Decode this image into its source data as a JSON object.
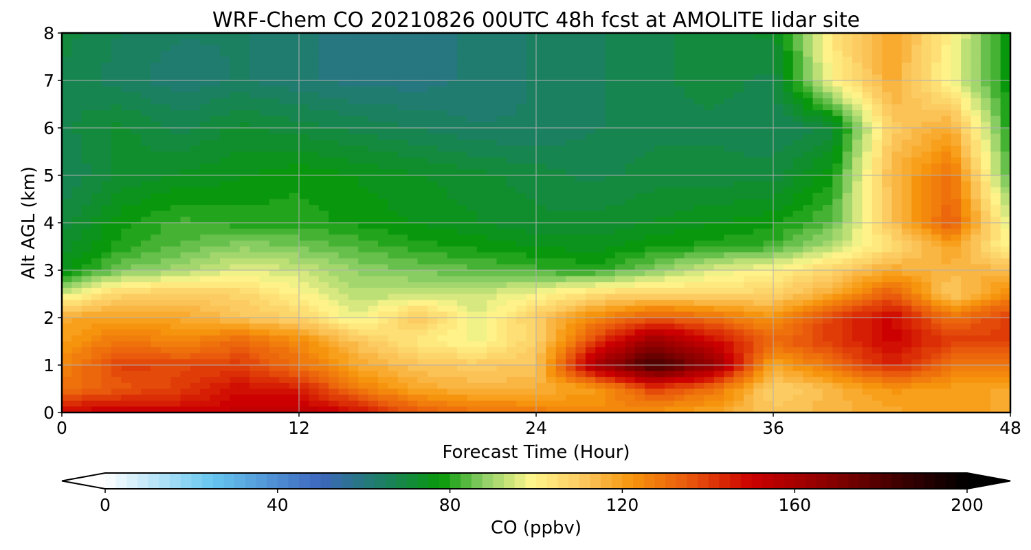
{
  "chart_data": {
    "type": "heatmap",
    "title": "WRF-Chem CO  20210826 00UTC 48h fcst at AMOLITE lidar site",
    "xlabel": "Forecast Time (Hour)",
    "ylabel": "Alt AGL (km)",
    "xlim": [
      0,
      48
    ],
    "ylim": [
      0,
      8
    ],
    "xticks": [
      0,
      12,
      24,
      36,
      48
    ],
    "yticks": [
      0,
      1,
      2,
      3,
      4,
      5,
      6,
      7,
      8
    ],
    "grid": true,
    "x": [
      0,
      3,
      6,
      9,
      12,
      15,
      18,
      21,
      24,
      27,
      30,
      33,
      36,
      39,
      42,
      45,
      48
    ],
    "y": [
      0,
      0.5,
      1,
      1.5,
      2,
      2.5,
      3,
      3.5,
      4,
      5,
      6,
      7,
      8
    ],
    "z": [
      [
        150,
        152,
        150,
        152,
        155,
        148,
        135,
        130,
        128,
        125,
        122,
        118,
        112,
        115,
        118,
        120,
        118
      ],
      [
        130,
        135,
        140,
        148,
        145,
        128,
        118,
        115,
        116,
        120,
        140,
        130,
        108,
        115,
        122,
        120,
        118
      ],
      [
        125,
        140,
        138,
        140,
        130,
        118,
        112,
        110,
        112,
        160,
        185,
        165,
        118,
        130,
        145,
        130,
        128
      ],
      [
        120,
        130,
        125,
        132,
        125,
        112,
        102,
        98,
        108,
        140,
        165,
        150,
        132,
        140,
        150,
        140,
        140
      ],
      [
        118,
        120,
        118,
        112,
        108,
        96,
        112,
        96,
        110,
        125,
        135,
        130,
        122,
        140,
        150,
        130,
        140
      ],
      [
        95,
        108,
        110,
        108,
        100,
        92,
        93,
        94,
        98,
        106,
        108,
        106,
        108,
        118,
        135,
        110,
        125
      ],
      [
        75,
        86,
        90,
        96,
        94,
        88,
        86,
        84,
        82,
        80,
        88,
        96,
        100,
        108,
        118,
        115,
        115
      ],
      [
        72,
        80,
        84,
        88,
        86,
        83,
        80,
        78,
        76,
        75,
        78,
        80,
        82,
        92,
        105,
        120,
        98
      ],
      [
        70,
        78,
        82,
        80,
        80,
        78,
        76,
        74,
        72,
        72,
        74,
        76,
        78,
        84,
        112,
        135,
        95
      ],
      [
        66,
        72,
        74,
        76,
        78,
        76,
        74,
        72,
        70,
        68,
        70,
        70,
        70,
        78,
        115,
        130,
        82
      ],
      [
        68,
        72,
        68,
        72,
        70,
        68,
        66,
        64,
        64,
        66,
        68,
        68,
        66,
        70,
        110,
        118,
        78
      ],
      [
        68,
        65,
        62,
        64,
        62,
        60,
        60,
        62,
        64,
        66,
        68,
        70,
        68,
        100,
        118,
        98,
        76
      ],
      [
        70,
        66,
        64,
        64,
        62,
        60,
        60,
        62,
        64,
        66,
        68,
        70,
        72,
        104,
        120,
        100,
        76
      ]
    ],
    "colorbar": {
      "label": "CO  (ppbv)",
      "min": 0,
      "max": 200,
      "ticks": [
        0,
        40,
        80,
        120,
        160,
        200
      ],
      "extend": "both",
      "colors": [
        {
          "value": 0,
          "color": "#ffffff"
        },
        {
          "value": 25,
          "color": "#66c6f0"
        },
        {
          "value": 50,
          "color": "#3d66bd"
        },
        {
          "value": 65,
          "color": "#1b8060"
        },
        {
          "value": 78,
          "color": "#08990a"
        },
        {
          "value": 88,
          "color": "#8fd067"
        },
        {
          "value": 99,
          "color": "#fff68c"
        },
        {
          "value": 112,
          "color": "#fbc45a"
        },
        {
          "value": 122,
          "color": "#f7960d"
        },
        {
          "value": 135,
          "color": "#e95a0c"
        },
        {
          "value": 150,
          "color": "#cc0000"
        },
        {
          "value": 168,
          "color": "#8a0000"
        },
        {
          "value": 185,
          "color": "#3a0000"
        },
        {
          "value": 200,
          "color": "#000000"
        }
      ]
    }
  }
}
